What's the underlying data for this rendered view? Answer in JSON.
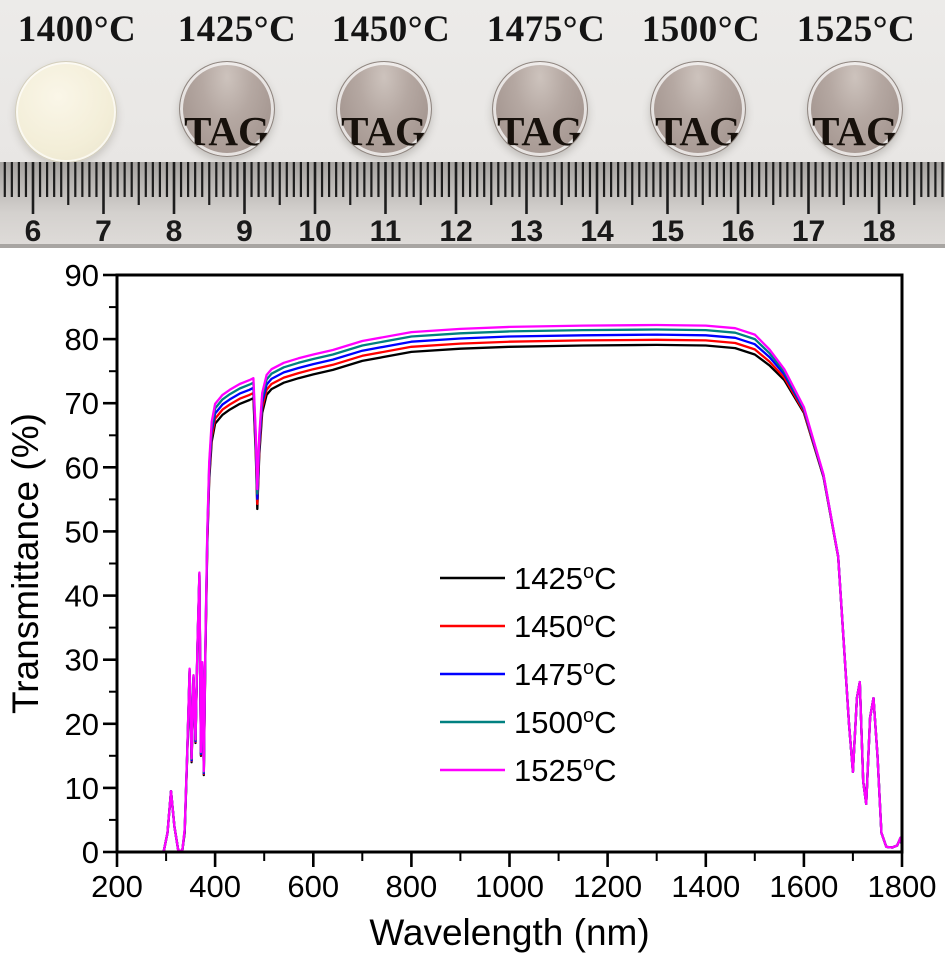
{
  "photo": {
    "paper_color": "#e9e7e5",
    "samples": [
      {
        "label": "1400°C",
        "body": "opaque",
        "text": ""
      },
      {
        "label": "1425°C",
        "body": "transparent",
        "text": "TAG"
      },
      {
        "label": "1450°C",
        "body": "transparent",
        "text": "TAG"
      },
      {
        "label": "1475°C",
        "body": "transparent",
        "text": "TAG"
      },
      {
        "label": "1500°C",
        "body": "transparent",
        "text": "TAG"
      },
      {
        "label": "1525°C",
        "body": "transparent",
        "text": "TAG"
      }
    ],
    "ruler": {
      "numbers": [
        "6",
        "7",
        "8",
        "9",
        "10",
        "11",
        "12",
        "13",
        "14",
        "15",
        "16",
        "17",
        "18"
      ],
      "tick_color": "#1d1d1d",
      "number_color": "#1a1a1a"
    }
  },
  "chart_data": {
    "type": "line",
    "title": "",
    "xlabel": "Wavelength (nm)",
    "ylabel": "Transmittance (%)",
    "xlim": [
      200,
      1800
    ],
    "ylim": [
      0,
      90
    ],
    "xtick_major": 200,
    "xtick_minor": 100,
    "ytick_major": 10,
    "ytick_minor": 5,
    "grid": false,
    "legend_position": "inside-center",
    "axis_color": "#000000",
    "x": [
      200,
      295,
      303,
      310,
      317,
      325,
      333,
      338,
      343,
      348,
      352,
      356,
      360,
      364,
      368,
      371,
      374,
      377,
      380,
      384,
      388,
      393,
      400,
      415,
      430,
      450,
      470,
      478,
      483,
      486,
      490,
      496,
      505,
      515,
      540,
      570,
      600,
      640,
      700,
      800,
      900,
      1000,
      1150,
      1300,
      1400,
      1460,
      1500,
      1530,
      1560,
      1600,
      1640,
      1670,
      1692,
      1700,
      1708,
      1714,
      1721,
      1727,
      1735,
      1742,
      1750,
      1758,
      1768,
      1780,
      1790,
      1797,
      1800
    ],
    "series": [
      {
        "name": "1425°C",
        "color": "#000000",
        "values": [
          0,
          0,
          3,
          9.5,
          4,
          0.2,
          0.2,
          3,
          15,
          28,
          14,
          27,
          17,
          32,
          43,
          15,
          29,
          12,
          30,
          48,
          58,
          64,
          66.8,
          68.2,
          69,
          69.9,
          70.5,
          70.8,
          62,
          53.5,
          62,
          68.5,
          71.3,
          72.2,
          73.2,
          73.9,
          74.5,
          75.2,
          76.6,
          78,
          78.5,
          78.8,
          79,
          79.1,
          79,
          78.6,
          77.6,
          75.9,
          73.6,
          68.5,
          58.5,
          46,
          20,
          12.5,
          24,
          26.5,
          11,
          7.5,
          21,
          24,
          15,
          3,
          0.8,
          0.7,
          1,
          2.2,
          1
        ]
      },
      {
        "name": "1450°C",
        "color": "#ff0000",
        "values": [
          0,
          0,
          3,
          9.5,
          4,
          0.2,
          0.2,
          3.2,
          15.2,
          28.2,
          14.2,
          27.2,
          17.2,
          32.2,
          43.2,
          15.2,
          29.2,
          12.2,
          30.4,
          48.6,
          58.7,
          64.8,
          67.6,
          69,
          69.8,
          70.7,
          71.3,
          71.6,
          62.8,
          54.3,
          62.8,
          69.3,
          72.1,
          73,
          74,
          74.7,
          75.3,
          76,
          77.4,
          78.8,
          79.3,
          79.6,
          79.8,
          79.9,
          79.8,
          79.4,
          78.4,
          76.5,
          74,
          68.7,
          58.6,
          46,
          20,
          12.5,
          24,
          26.5,
          11,
          7.5,
          21,
          24,
          15,
          3,
          0.8,
          0.7,
          1,
          2.2,
          1
        ]
      },
      {
        "name": "1475°C",
        "color": "#0000ff",
        "values": [
          0,
          0,
          3,
          9.5,
          4,
          0.2,
          0.2,
          3.3,
          15.3,
          28.3,
          14.3,
          27.3,
          17.3,
          32.3,
          43.3,
          15.3,
          29.3,
          12.3,
          30.8,
          49.1,
          59.4,
          65.6,
          68.4,
          69.8,
          70.6,
          71.5,
          72.1,
          72.4,
          63.6,
          55.1,
          63.6,
          70.1,
          72.9,
          73.8,
          74.8,
          75.5,
          76.1,
          76.8,
          78.2,
          79.6,
          80.1,
          80.4,
          80.6,
          80.7,
          80.6,
          80.2,
          79.2,
          77.2,
          74.5,
          69,
          58.7,
          46.1,
          20,
          12.5,
          24,
          26.5,
          11,
          7.5,
          21,
          24,
          15,
          3,
          0.8,
          0.7,
          1,
          2.2,
          1
        ]
      },
      {
        "name": "1500°C",
        "color": "#008080",
        "values": [
          0,
          0,
          3,
          9.5,
          4,
          0.2,
          0.2,
          3.5,
          15.5,
          28.5,
          14.5,
          27.5,
          17.5,
          32.5,
          43.5,
          15.5,
          29.5,
          12.5,
          31.2,
          49.7,
          60.2,
          66.2,
          69.2,
          70.6,
          71.4,
          72.3,
          72.9,
          73.2,
          64.4,
          55.9,
          64.4,
          70.9,
          73.7,
          74.6,
          75.6,
          76.3,
          76.9,
          77.6,
          79,
          80.4,
          80.9,
          81.2,
          81.4,
          81.5,
          81.4,
          81,
          80,
          77.8,
          74.9,
          69.2,
          58.8,
          46.1,
          20,
          12.5,
          24,
          26.5,
          11,
          7.5,
          21,
          24,
          15,
          3,
          0.8,
          0.7,
          1,
          2.2,
          1
        ]
      },
      {
        "name": "1525°C",
        "color": "#ff00ff",
        "values": [
          0,
          0,
          3,
          9.5,
          4,
          0.2,
          0.2,
          3.6,
          15.6,
          28.6,
          14.6,
          27.6,
          17.6,
          32.6,
          43.6,
          15.6,
          29.6,
          12.6,
          31.6,
          50.2,
          60.8,
          67.1,
          69.9,
          71.3,
          72.1,
          73,
          73.6,
          73.9,
          65.1,
          56.6,
          65.1,
          71.6,
          74.4,
          75.3,
          76.3,
          77,
          77.6,
          78.3,
          79.7,
          81.1,
          81.6,
          81.9,
          82.1,
          82.2,
          82.1,
          81.7,
          80.7,
          78.4,
          75.3,
          69.4,
          58.9,
          46.1,
          20,
          12.5,
          24,
          26.5,
          11,
          7.5,
          21,
          24,
          15,
          3,
          0.8,
          0.7,
          1,
          2.2,
          1
        ]
      }
    ]
  }
}
